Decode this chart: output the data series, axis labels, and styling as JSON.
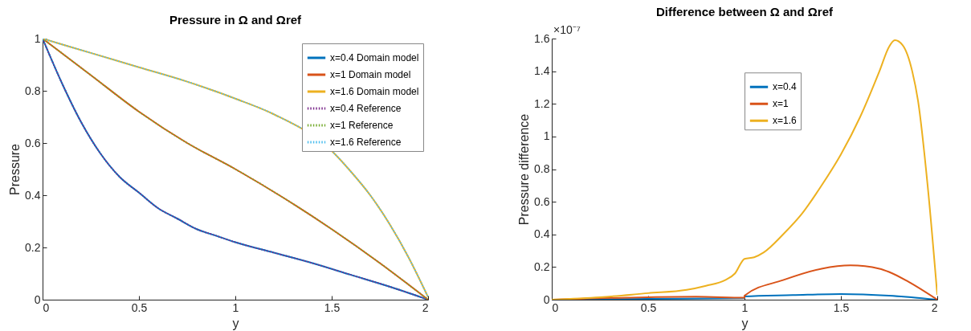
{
  "chart_data": [
    {
      "type": "line",
      "title": "Pressure in Ω and Ωref",
      "xlabel": "y",
      "ylabel": "Pressure",
      "xlim": [
        0,
        2
      ],
      "ylim": [
        0,
        1
      ],
      "xticks": [
        0,
        0.5,
        1,
        1.5,
        2
      ],
      "yticks": [
        0,
        0.2,
        0.4,
        0.6,
        0.8,
        1
      ],
      "grid": false,
      "legend": "top right",
      "series": [
        {
          "name": "x=0.4 Domain model",
          "color": "#0072bd",
          "line_style": "solid",
          "x": [
            0,
            0.1,
            0.2,
            0.3,
            0.4,
            0.5,
            0.6,
            0.7,
            0.8,
            0.9,
            1,
            1.2,
            1.4,
            1.6,
            1.8,
            2
          ],
          "values": [
            1,
            0.83,
            0.68,
            0.56,
            0.47,
            0.41,
            0.35,
            0.31,
            0.27,
            0.245,
            0.22,
            0.18,
            0.14,
            0.095,
            0.05,
            0
          ]
        },
        {
          "name": "x=1 Domain model",
          "color": "#d95319",
          "line_style": "solid",
          "x": [
            0,
            0.25,
            0.5,
            0.75,
            1,
            1.25,
            1.5,
            1.75,
            2
          ],
          "values": [
            1,
            0.86,
            0.72,
            0.6,
            0.5,
            0.39,
            0.27,
            0.14,
            0
          ]
        },
        {
          "name": "x=1.6 Domain model",
          "color": "#edb120",
          "line_style": "solid",
          "x": [
            0,
            0.25,
            0.5,
            0.75,
            1,
            1.2,
            1.5,
            1.6,
            1.7,
            1.8,
            1.9,
            2
          ],
          "values": [
            1,
            0.945,
            0.89,
            0.835,
            0.77,
            0.71,
            0.57,
            0.49,
            0.4,
            0.29,
            0.16,
            0.01
          ]
        },
        {
          "name": "x=0.4 Reference",
          "color": "#7e2f8e",
          "line_style": "dotted",
          "x": [
            0,
            0.1,
            0.2,
            0.3,
            0.4,
            0.5,
            0.6,
            0.7,
            0.8,
            0.9,
            1,
            1.2,
            1.4,
            1.6,
            1.8,
            2
          ],
          "values": [
            1,
            0.83,
            0.68,
            0.56,
            0.47,
            0.41,
            0.35,
            0.31,
            0.27,
            0.245,
            0.22,
            0.18,
            0.14,
            0.095,
            0.05,
            0
          ]
        },
        {
          "name": "x=1 Reference",
          "color": "#77ac30",
          "line_style": "dotted",
          "x": [
            0,
            0.25,
            0.5,
            0.75,
            1,
            1.25,
            1.5,
            1.75,
            2
          ],
          "values": [
            1,
            0.86,
            0.72,
            0.6,
            0.5,
            0.39,
            0.27,
            0.14,
            0
          ]
        },
        {
          "name": "x=1.6 Reference",
          "color": "#4dbeee",
          "line_style": "dotted",
          "x": [
            0,
            0.25,
            0.5,
            0.75,
            1,
            1.2,
            1.5,
            1.6,
            1.7,
            1.8,
            1.9,
            2
          ],
          "values": [
            1,
            0.945,
            0.89,
            0.835,
            0.77,
            0.71,
            0.57,
            0.49,
            0.4,
            0.29,
            0.16,
            0.01
          ]
        }
      ]
    },
    {
      "type": "line",
      "title": "Difference between Ω and Ωref",
      "xlabel": "y",
      "ylabel": "Pressure difference",
      "annotations": [
        "×10⁻⁷"
      ],
      "xlim": [
        0,
        2
      ],
      "ylim": [
        0,
        1.6
      ],
      "xticks": [
        0,
        0.5,
        1,
        1.5,
        2
      ],
      "yticks": [
        0,
        0.2,
        0.4,
        0.6,
        0.8,
        1,
        1.2,
        1.4,
        1.6
      ],
      "grid": false,
      "legend": "top",
      "series": [
        {
          "name": "x=0.4",
          "color": "#0072bd",
          "line_style": "solid",
          "x": [
            0,
            0.5,
            1,
            1,
            1.25,
            1.5,
            1.75,
            2
          ],
          "values": [
            0,
            0.005,
            0.01,
            0.02,
            0.028,
            0.035,
            0.025,
            0
          ]
        },
        {
          "name": "x=1",
          "color": "#d95319",
          "line_style": "solid",
          "x": [
            0,
            0.5,
            0.75,
            1,
            1,
            1.2,
            1.4,
            1.55,
            1.7,
            1.75,
            1.85,
            2
          ],
          "values": [
            0,
            0.015,
            0.018,
            0.012,
            0.025,
            0.12,
            0.19,
            0.21,
            0.19,
            0.17,
            0.11,
            0
          ]
        },
        {
          "name": "x=1.6",
          "color": "#edb120",
          "line_style": "solid",
          "x": [
            0,
            0.25,
            0.5,
            0.7,
            0.8,
            0.9,
            0.95,
            1,
            1.05,
            1.1,
            1.2,
            1.3,
            1.4,
            1.5,
            1.6,
            1.7,
            1.75,
            1.78,
            1.82,
            1.87,
            1.9,
            1.95,
            2
          ],
          "values": [
            0,
            0.015,
            0.04,
            0.06,
            0.085,
            0.12,
            0.16,
            0.25,
            0.26,
            0.29,
            0.4,
            0.53,
            0.7,
            0.89,
            1.12,
            1.4,
            1.55,
            1.59,
            1.56,
            1.4,
            1.22,
            0.7,
            0.03
          ]
        }
      ]
    }
  ]
}
